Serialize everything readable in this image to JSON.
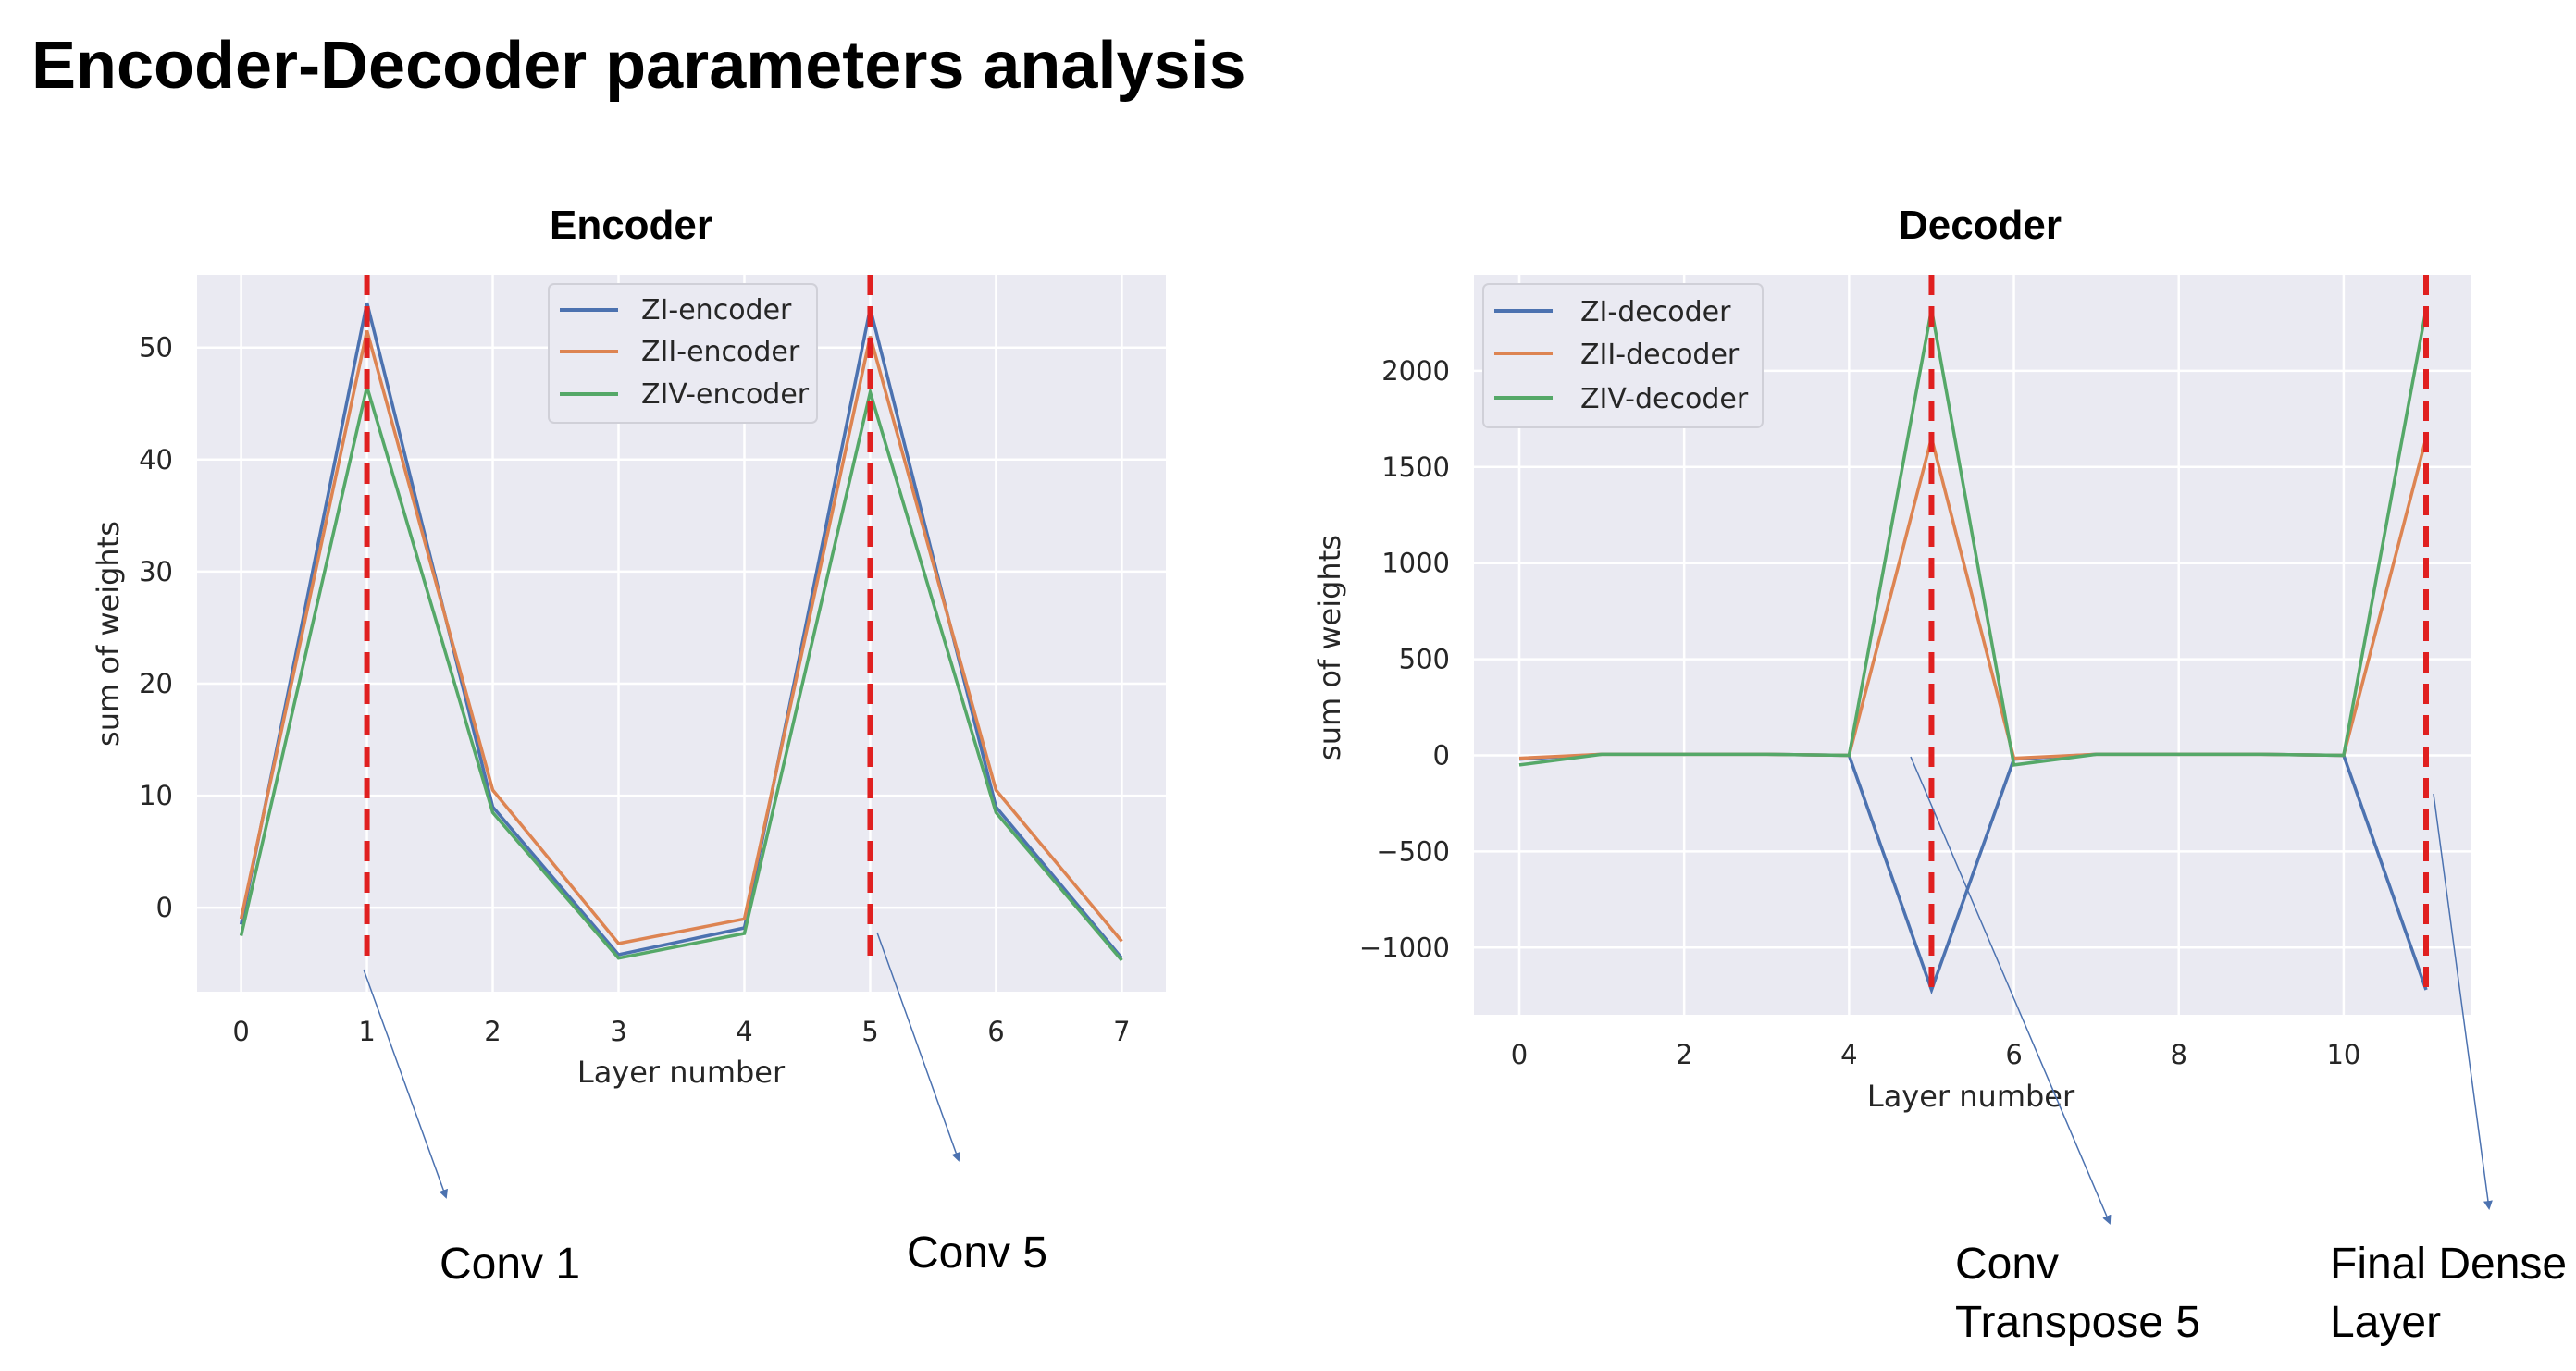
{
  "page_title": "Encoder-Decoder parameters analysis",
  "colors": {
    "blue": "#4c72b0",
    "orange": "#dd8452",
    "green": "#55a868",
    "marker": "#e02020",
    "arrow": "#4c72b0",
    "plot_bg": "#eaeaf2"
  },
  "chart_data": [
    {
      "type": "line",
      "title": "Encoder",
      "xlabel": "Layer number",
      "ylabel": "sum of weights",
      "x": [
        0,
        1,
        2,
        3,
        4,
        5,
        6,
        7
      ],
      "xlim": [
        -0.35,
        7.35
      ],
      "ylim": [
        -7.5,
        56.5
      ],
      "xticks": [
        0,
        1,
        2,
        3,
        4,
        5,
        6,
        7
      ],
      "yticks": [
        0,
        10,
        20,
        30,
        40,
        50
      ],
      "grid": true,
      "legend_position": "top-center",
      "series": [
        {
          "name": "ZI-encoder",
          "color": "#4c72b0",
          "values": [
            -1.5,
            54,
            9.0,
            -4.2,
            -1.8,
            53.5,
            9.0,
            -4.5
          ]
        },
        {
          "name": "ZII-encoder",
          "color": "#dd8452",
          "values": [
            -1.0,
            51.5,
            10.5,
            -3.2,
            -1.0,
            51.0,
            10.5,
            -3.0
          ]
        },
        {
          "name": "ZIV-encoder",
          "color": "#55a868",
          "values": [
            -2.5,
            46.5,
            8.5,
            -4.5,
            -2.3,
            46.0,
            8.5,
            -4.7
          ]
        }
      ],
      "markers": [
        1,
        5
      ],
      "annotations": [
        {
          "label_lines": [
            "Conv 1"
          ],
          "layer": 1
        },
        {
          "label_lines": [
            "Conv 5"
          ],
          "layer": 5
        }
      ]
    },
    {
      "type": "line",
      "title": "Decoder",
      "xlabel": "Layer number",
      "ylabel": "sum of weights",
      "x": [
        0,
        1,
        2,
        3,
        4,
        5,
        6,
        7,
        8,
        9,
        10,
        11
      ],
      "xlim": [
        -0.55,
        11.55
      ],
      "ylim": [
        -1350,
        2500
      ],
      "xticks": [
        0,
        2,
        4,
        6,
        8,
        10
      ],
      "yticks": [
        -1000,
        -500,
        0,
        500,
        1000,
        1500,
        2000
      ],
      "grid": true,
      "legend_position": "top-left",
      "series": [
        {
          "name": "ZI-decoder",
          "color": "#4c72b0",
          "values": [
            -20,
            5,
            5,
            5,
            0,
            -1220,
            -20,
            5,
            5,
            5,
            0,
            -1220
          ]
        },
        {
          "name": "ZII-decoder",
          "color": "#dd8452",
          "values": [
            -15,
            5,
            5,
            5,
            0,
            1650,
            -15,
            5,
            5,
            5,
            0,
            1650
          ]
        },
        {
          "name": "ZIV-decoder",
          "color": "#55a868",
          "values": [
            -50,
            5,
            5,
            5,
            0,
            2320,
            -50,
            5,
            5,
            5,
            0,
            2320
          ]
        }
      ],
      "markers": [
        5,
        11
      ],
      "annotations": [
        {
          "label_lines": [
            "Conv",
            "Transpose 5"
          ],
          "layer": 5
        },
        {
          "label_lines": [
            "Final Dense",
            "Layer"
          ],
          "layer": 11
        }
      ]
    }
  ]
}
